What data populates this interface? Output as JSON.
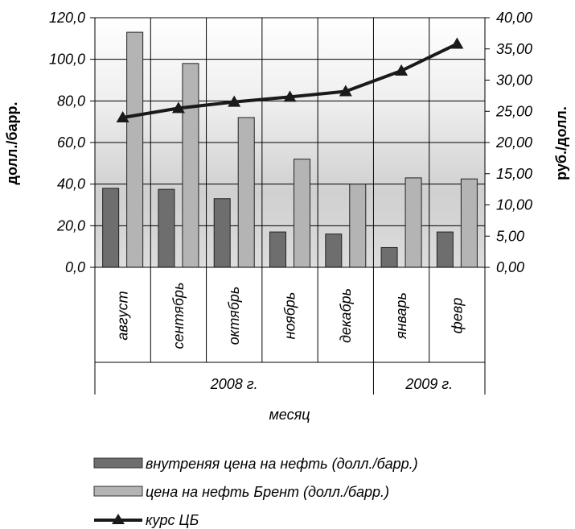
{
  "chart_data": {
    "type": "bar",
    "categories": [
      "август",
      "сентябрь",
      "октябрь",
      "ноябрь",
      "декабрь",
      "январь",
      "февр"
    ],
    "year_groups": [
      {
        "label": "2008 г.",
        "count": 5
      },
      {
        "label": "2009 г.",
        "count": 2
      }
    ],
    "xlabel": "месяц",
    "ylabel_left": "долл./барр.",
    "ylabel_right": "руб./долл.",
    "ylim_left": [
      0,
      120
    ],
    "ylim_right": [
      0,
      40
    ],
    "yticks_left": [
      "0,0",
      "20,0",
      "40,0",
      "60,0",
      "80,0",
      "100,0",
      "120,0"
    ],
    "yticks_right": [
      "0,00",
      "5,00",
      "10,00",
      "15,00",
      "20,00",
      "25,00",
      "30,00",
      "35,00",
      "40,00"
    ],
    "grid": true,
    "legend_position": "bottom",
    "series": [
      {
        "name": "внутреняя цена на нефть (долл./барр.)",
        "type": "bar",
        "axis": "left",
        "color": "#6e6e6e",
        "values": [
          38,
          37.5,
          33,
          17,
          16,
          9.5,
          17
        ]
      },
      {
        "name": "цена на нефть Брент (долл./барр.)",
        "type": "bar",
        "axis": "left",
        "color": "#b4b4b4",
        "values": [
          113,
          98,
          72,
          52,
          40,
          43,
          42.5
        ]
      },
      {
        "name": "курс ЦБ",
        "type": "line",
        "axis": "right",
        "color": "#1a1a1a",
        "marker": "triangle",
        "values": [
          24.0,
          25.5,
          26.5,
          27.3,
          28.2,
          31.5,
          35.8
        ]
      }
    ]
  }
}
